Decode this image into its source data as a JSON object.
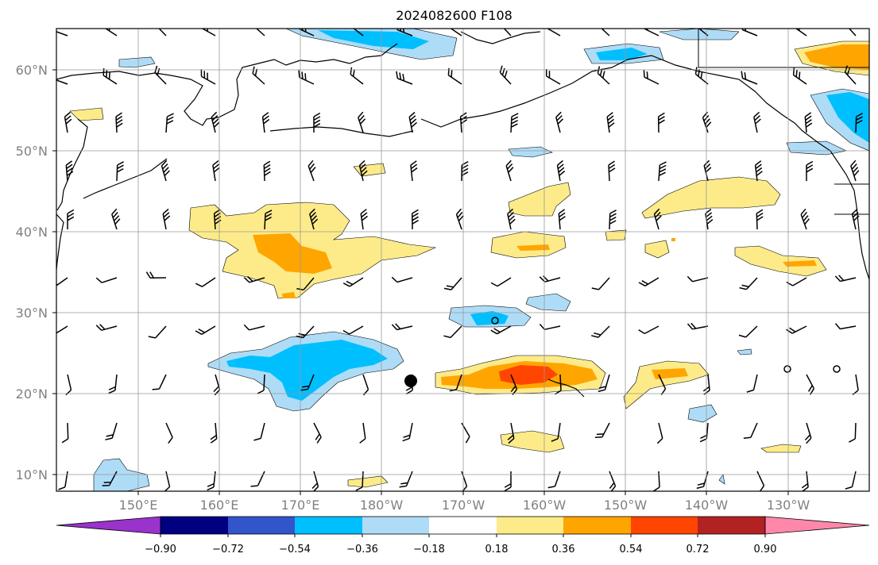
{
  "title": "2024082600 F108",
  "lat_labels": [
    "60°N",
    "50°N",
    "40°N",
    "30°N",
    "20°N",
    "10°N"
  ],
  "lon_labels": [
    "150°E",
    "160°E",
    "170°E",
    "180°W",
    "170°W",
    "160°W",
    "150°W",
    "140°W",
    "130°W"
  ],
  "colorbar": {
    "ticks": [
      "−0.90",
      "−0.72",
      "−0.54",
      "−0.36",
      "−0.18",
      "0.18",
      "0.36",
      "0.54",
      "0.72",
      "0.90"
    ],
    "colors": [
      "#9933cc",
      "#000080",
      "#3355cc",
      "#00bfff",
      "#aedcf7",
      "#ffffff",
      "#fdeb8a",
      "#ffa500",
      "#ff4500",
      "#b22222",
      "#ff88aa"
    ]
  },
  "palette": {
    "light_blue": "#aedcf7",
    "blue": "#00bfff",
    "light_yellow": "#fdeb8a",
    "orange": "#ffa500",
    "red_orange": "#ff4500"
  }
}
